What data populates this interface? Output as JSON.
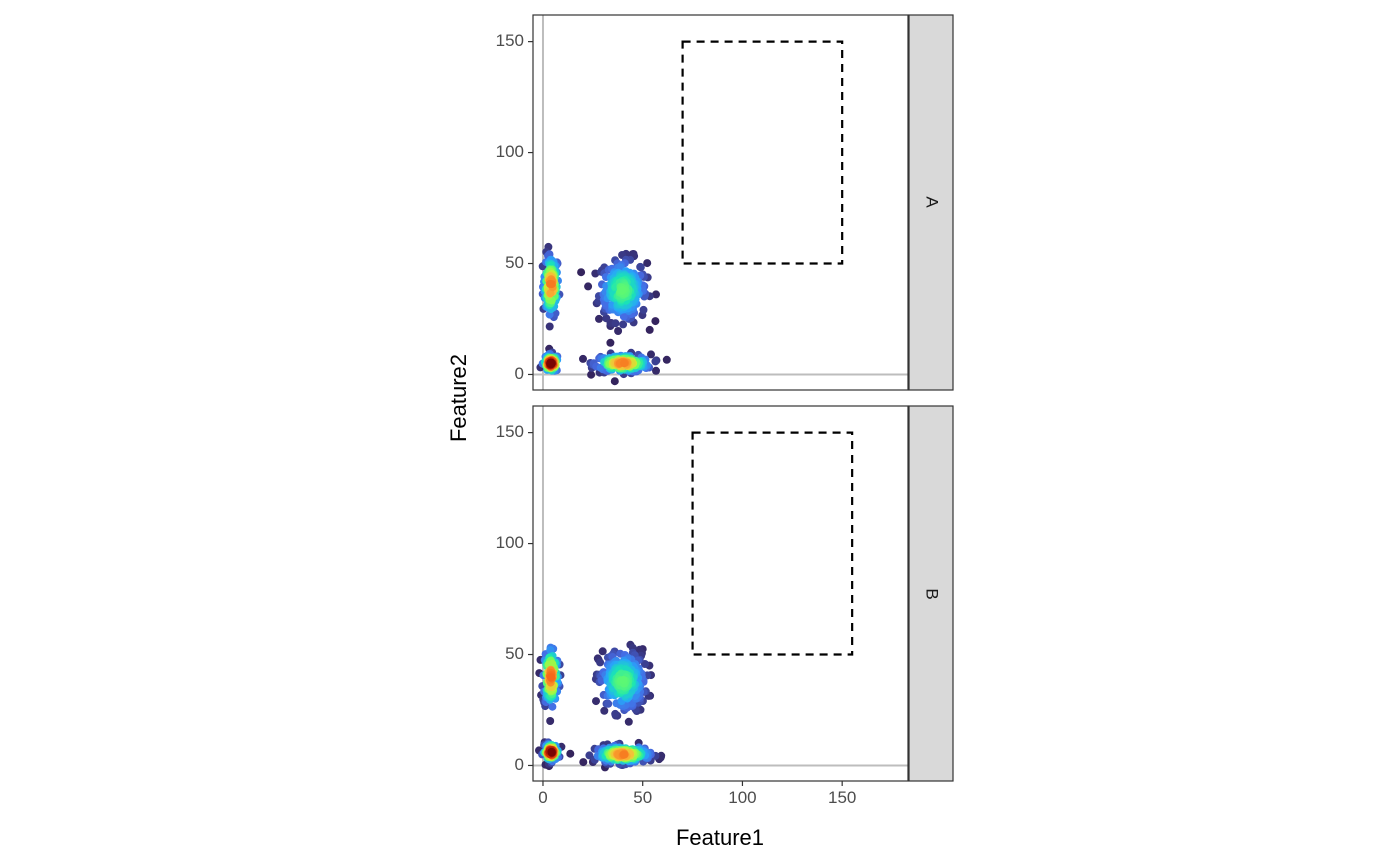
{
  "chart_data": {
    "type": "scatter",
    "xlabel": "Feature1",
    "ylabel": "Feature2",
    "xlim": [
      -5,
      183
    ],
    "ylim": [
      -7,
      162
    ],
    "x_ticks": [
      0,
      50,
      100,
      150
    ],
    "y_ticks": [
      0,
      50,
      100,
      150
    ],
    "reference_lines": {
      "x": 0,
      "y": 0,
      "color": "#bdbdbd"
    },
    "colormap": "turbo (point density, low = dark purple, high = dark red)",
    "facets": [
      {
        "strip_label": "A",
        "gate": {
          "x": [
            70,
            150
          ],
          "y": [
            50,
            150
          ],
          "style": "dashed"
        },
        "clusters": [
          {
            "center": [
              4,
              40
            ],
            "spread": [
              2,
              7
            ]
          },
          {
            "center": [
              40,
              38
            ],
            "spread": [
              6,
              7
            ]
          },
          {
            "center": [
              4,
              5
            ],
            "spread": [
              2,
              2
            ]
          },
          {
            "center": [
              40,
              5
            ],
            "spread": [
              7,
              2
            ]
          }
        ]
      },
      {
        "strip_label": "B",
        "gate": {
          "x": [
            75,
            155
          ],
          "y": [
            50,
            150
          ],
          "style": "dashed"
        },
        "clusters": [
          {
            "center": [
              4,
              40
            ],
            "spread": [
              2,
              7
            ]
          },
          {
            "center": [
              40,
              38
            ],
            "spread": [
              6,
              7
            ]
          },
          {
            "center": [
              4,
              6
            ],
            "spread": [
              2,
              2
            ]
          },
          {
            "center": [
              40,
              5
            ],
            "spread": [
              7,
              2
            ]
          }
        ]
      }
    ]
  }
}
